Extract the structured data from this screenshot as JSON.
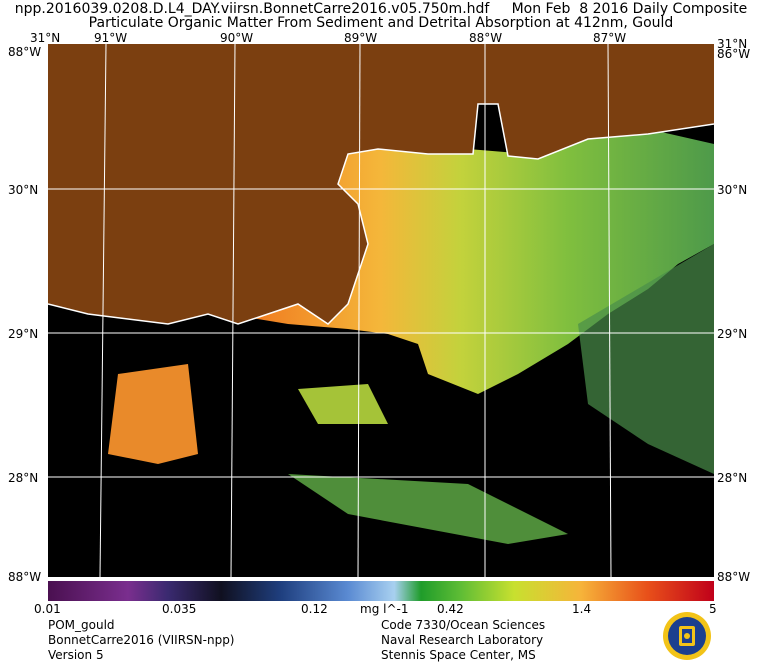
{
  "header": {
    "line1": "npp.2016039.0208.D.L4_DAY.viirsn.BonnetCarre2016.v05.750m.hdf     Mon Feb  8 2016 Daily Composite",
    "line2": "Particulate Organic Matter From Sediment and Detrital Absorption at 412nm, Gould"
  },
  "axes": {
    "top_longitudes": [
      "91°W",
      "90°W",
      "89°W",
      "88°W",
      "87°W"
    ],
    "corner_lat_top": "31°N",
    "corner_lon_top_left": "88°W",
    "corner_lon_top_right": "86°W",
    "latitudes": [
      "30°N",
      "29°N",
      "28°N"
    ],
    "corner_lon_bottom_left": "88°W",
    "corner_lon_bottom_right": "88°W"
  },
  "colorbar": {
    "ticks": [
      "0.01",
      "0.035",
      "0.12",
      "0.42",
      "1.4",
      "5"
    ],
    "unit": "mg l^-1"
  },
  "footer": {
    "left": [
      "POM_gould",
      "BonnetCarre2016 (VIIRSN-npp)",
      "Version 5"
    ],
    "right": [
      "Code 7330/Ocean Sciences",
      "Naval Research Laboratory",
      "Stennis Space Center, MS"
    ]
  },
  "colors": {
    "land": "#7b3f10",
    "no_data": "#000000",
    "coast": "#ffffff",
    "grid": "#ffffff"
  }
}
